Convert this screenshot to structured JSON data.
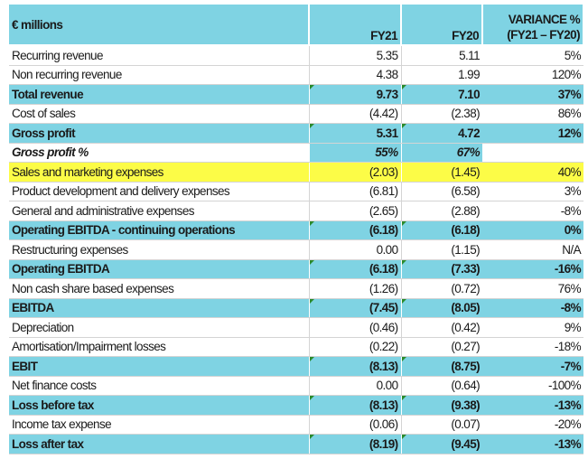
{
  "header": {
    "label": "€ millions",
    "fy21": "FY21",
    "fy20": "FY20",
    "variance_line1": "VARIANCE %",
    "variance_line2": "(FY21 – FY20)"
  },
  "rows": [
    {
      "label": "Recurring revenue",
      "fy21": "5.35",
      "fy20": "5.11",
      "variance": "5%",
      "style": "plain"
    },
    {
      "label": "Non recurring revenue",
      "fy21": "4.38",
      "fy20": "1.99",
      "variance": "120%",
      "style": "plain"
    },
    {
      "label": "Total revenue",
      "fy21": "9.73",
      "fy20": "7.10",
      "variance": "37%",
      "style": "bold"
    },
    {
      "label": "Cost of sales",
      "fy21": "(4.42)",
      "fy20": "(2.38)",
      "variance": "86%",
      "style": "plain"
    },
    {
      "label": "Gross profit",
      "fy21": "5.31",
      "fy20": "4.72",
      "variance": "12%",
      "style": "bold"
    },
    {
      "label": "Gross profit %",
      "fy21": "55%",
      "fy20": "67%",
      "variance": "",
      "style": "italic"
    },
    {
      "label": "Sales and marketing expenses",
      "fy21": "(2.03)",
      "fy20": "(1.45)",
      "variance": "40%",
      "style": "highlight"
    },
    {
      "label": "Product development and delivery expenses",
      "fy21": "(6.81)",
      "fy20": "(6.58)",
      "variance": "3%",
      "style": "plain"
    },
    {
      "label": "General and administrative expenses",
      "fy21": "(2.65)",
      "fy20": "(2.88)",
      "variance": "-8%",
      "style": "plain"
    },
    {
      "label": "Operating EBITDA - continuing operations",
      "fy21": "(6.18)",
      "fy20": "(6.18)",
      "variance": "0%",
      "style": "bold"
    },
    {
      "label": "Restructuring expenses",
      "fy21": "0.00",
      "fy20": "(1.15)",
      "variance": "N/A",
      "style": "plain"
    },
    {
      "label": "Operating EBITDA",
      "fy21": "(6.18)",
      "fy20": "(7.33)",
      "variance": "-16%",
      "style": "bold"
    },
    {
      "label": "Non cash share based expenses",
      "fy21": "(1.26)",
      "fy20": "(0.72)",
      "variance": "76%",
      "style": "plain"
    },
    {
      "label": "EBITDA",
      "fy21": "(7.45)",
      "fy20": "(8.05)",
      "variance": "-8%",
      "style": "bold"
    },
    {
      "label": "Depreciation",
      "fy21": "(0.46)",
      "fy20": "(0.42)",
      "variance": "9%",
      "style": "plain"
    },
    {
      "label": "Amortisation/Impairment losses",
      "fy21": "(0.22)",
      "fy20": "(0.27)",
      "variance": "-18%",
      "style": "plain"
    },
    {
      "label": "EBIT",
      "fy21": "(8.13)",
      "fy20": "(8.75)",
      "variance": "-7%",
      "style": "bold"
    },
    {
      "label": "Net finance costs",
      "fy21": "0.00",
      "fy20": "(0.64)",
      "variance": "-100%",
      "style": "plain"
    },
    {
      "label": "Loss before tax",
      "fy21": "(8.13)",
      "fy20": "(9.38)",
      "variance": "-13%",
      "style": "bold"
    },
    {
      "label": "Income tax expense",
      "fy21": "(0.06)",
      "fy20": "(0.07)",
      "variance": "-20%",
      "style": "plain"
    },
    {
      "label": "Loss after tax",
      "fy21": "(8.19)",
      "fy20": "(9.45)",
      "variance": "-13%",
      "style": "bold"
    }
  ]
}
